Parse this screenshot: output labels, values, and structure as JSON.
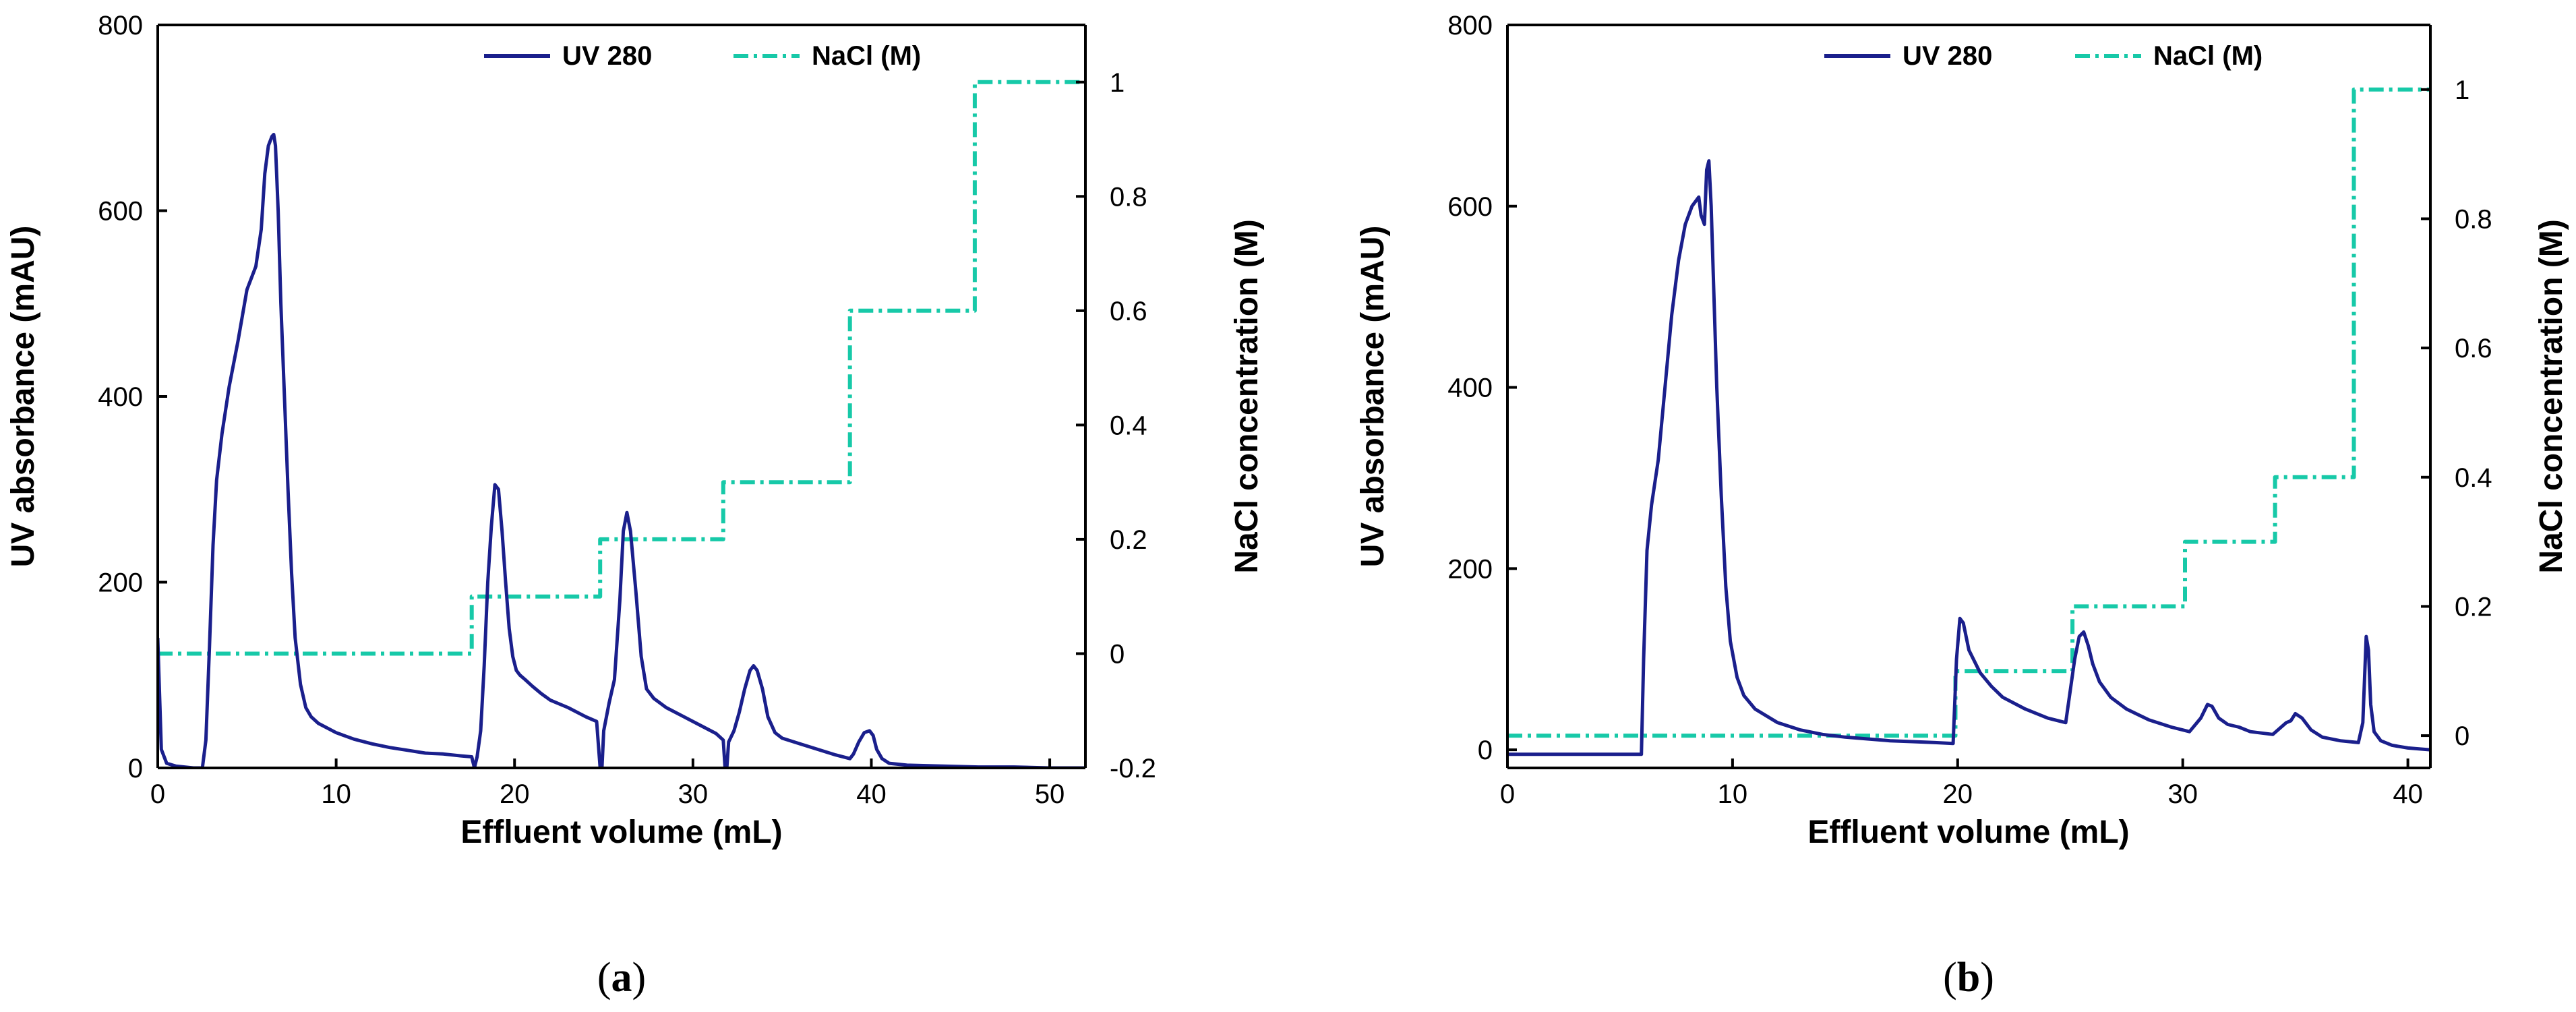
{
  "colors": {
    "uv": "#1a1f8c",
    "nacl": "#17c9a8",
    "axis": "#000000"
  },
  "chart_data": [
    {
      "panel": "(a)",
      "panel_letter": "a",
      "type": "line",
      "xlabel": "Effluent volume (mL)",
      "ylabel": "UV absorbance (mAU)",
      "y2label": "NaCl concentration (M)",
      "xlim": [
        0,
        52
      ],
      "ylim": [
        0,
        800
      ],
      "y2lim": [
        -0.2,
        1.1
      ],
      "xticks": [
        0,
        10,
        20,
        30,
        40,
        50
      ],
      "yticks": [
        0,
        200,
        400,
        600,
        800
      ],
      "y2ticks": [
        -0.2,
        0,
        0.2,
        0.4,
        0.6,
        0.8,
        1
      ],
      "legend": {
        "uv": "UV 280",
        "nacl": "NaCl (M)"
      },
      "series": [
        {
          "name": "UV 280",
          "axis": "left",
          "x": [
            0,
            0.05,
            0.2,
            0.5,
            1.0,
            2.0,
            2.5,
            2.7,
            2.9,
            3.1,
            3.3,
            3.6,
            4.0,
            4.5,
            5.0,
            5.5,
            5.8,
            6.0,
            6.2,
            6.4,
            6.5,
            6.6,
            6.75,
            6.9,
            7.1,
            7.3,
            7.5,
            7.7,
            8.0,
            8.3,
            8.6,
            9,
            10,
            11,
            12,
            13,
            14,
            15,
            16,
            17,
            17.6,
            17.75,
            17.9,
            18.1,
            18.3,
            18.5,
            18.7,
            18.9,
            19.1,
            19.3,
            19.5,
            19.7,
            19.9,
            20.1,
            20.3,
            20.6,
            21,
            21.5,
            22,
            23,
            24,
            24.6,
            24.8,
            24.9,
            25.0,
            25.3,
            25.6,
            25.9,
            26.1,
            26.3,
            26.5,
            26.8,
            27.1,
            27.4,
            27.8,
            28.5,
            29.5,
            30.5,
            31.3,
            31.7,
            31.8,
            31.9,
            32.0,
            32.3,
            32.6,
            32.9,
            33.2,
            33.4,
            33.6,
            33.9,
            34.2,
            34.6,
            35,
            36,
            37,
            38,
            38.8,
            39.0,
            39.3,
            39.6,
            39.9,
            40.1,
            40.3,
            40.6,
            41.0,
            42,
            44,
            46,
            48,
            50,
            52
          ],
          "values": [
            140,
            110,
            20,
            5,
            2,
            0,
            0,
            30,
            130,
            240,
            310,
            360,
            410,
            460,
            515,
            540,
            580,
            640,
            670,
            680,
            682,
            670,
            600,
            500,
            400,
            300,
            210,
            140,
            90,
            65,
            55,
            48,
            38,
            31,
            26,
            22,
            19,
            16,
            15,
            13,
            12,
            0,
            12,
            40,
            110,
            200,
            260,
            305,
            300,
            255,
            200,
            150,
            120,
            105,
            100,
            95,
            88,
            80,
            73,
            65,
            55,
            50,
            0,
            0,
            40,
            70,
            95,
            180,
            255,
            275,
            255,
            190,
            120,
            85,
            75,
            65,
            55,
            45,
            37,
            30,
            0,
            0,
            28,
            40,
            60,
            85,
            105,
            110,
            105,
            85,
            55,
            38,
            32,
            26,
            20,
            14,
            10,
            15,
            28,
            38,
            40,
            35,
            20,
            10,
            5,
            3,
            2,
            1,
            1,
            0,
            0
          ]
        },
        {
          "name": "NaCl (M)",
          "axis": "right",
          "x": [
            0,
            17.6,
            17.6,
            24.8,
            24.8,
            31.7,
            31.7,
            38.8,
            38.8,
            45.8,
            45.8,
            52
          ],
          "values": [
            0,
            0,
            0.1,
            0.1,
            0.2,
            0.2,
            0.3,
            0.3,
            0.6,
            0.6,
            1.0,
            1.0
          ]
        }
      ]
    },
    {
      "panel": "(b)",
      "panel_letter": "b",
      "type": "line",
      "xlabel": "Effluent volume (mL)",
      "ylabel": "UV absorbance (mAU)",
      "y2label": "NaCl concentration (M)",
      "xlim": [
        0,
        41
      ],
      "ylim": [
        -20,
        800
      ],
      "y2lim": [
        -0.05,
        1.1
      ],
      "xticks": [
        0,
        10,
        20,
        30,
        40
      ],
      "yticks": [
        0,
        200,
        400,
        600,
        800
      ],
      "y2ticks": [
        0,
        0.2,
        0.4,
        0.6,
        0.8,
        1
      ],
      "legend": {
        "uv": "UV 280",
        "nacl": "NaCl (M)"
      },
      "series": [
        {
          "name": "UV 280",
          "axis": "left",
          "x": [
            0,
            5.95,
            6.05,
            6.2,
            6.4,
            6.7,
            7.0,
            7.3,
            7.6,
            7.9,
            8.2,
            8.5,
            8.6,
            8.75,
            8.85,
            8.95,
            9.05,
            9.15,
            9.3,
            9.5,
            9.7,
            9.9,
            10.2,
            10.5,
            11,
            12,
            13,
            14,
            15,
            16,
            17,
            18,
            19,
            19.8,
            19.95,
            20.1,
            20.25,
            20.5,
            21,
            21.5,
            22,
            23,
            24,
            24.8,
            25.2,
            25.4,
            25.6,
            25.8,
            26.0,
            26.3,
            26.8,
            27.5,
            28.5,
            29.5,
            30.3,
            30.8,
            31.1,
            31.3,
            31.6,
            32,
            32.5,
            33,
            34,
            34.6,
            34.8,
            35.0,
            35.3,
            35.7,
            36.2,
            37,
            37.8,
            38.0,
            38.15,
            38.25,
            38.35,
            38.5,
            38.8,
            39.3,
            40,
            41
          ],
          "values": [
            -5,
            -5,
            100,
            220,
            270,
            320,
            400,
            480,
            540,
            580,
            600,
            610,
            590,
            580,
            640,
            650,
            600,
            520,
            400,
            280,
            180,
            120,
            80,
            60,
            45,
            30,
            22,
            17,
            14,
            12,
            10,
            9,
            8,
            7,
            100,
            145,
            140,
            110,
            85,
            70,
            58,
            45,
            35,
            30,
            100,
            125,
            130,
            115,
            95,
            75,
            58,
            45,
            33,
            25,
            20,
            35,
            50,
            48,
            35,
            28,
            25,
            20,
            17,
            30,
            32,
            40,
            35,
            22,
            14,
            10,
            8,
            30,
            125,
            110,
            50,
            20,
            10,
            5,
            2,
            0
          ]
        },
        {
          "name": "NaCl (M)",
          "axis": "right",
          "x": [
            0,
            19.9,
            19.9,
            25.1,
            25.1,
            30.1,
            30.1,
            34.1,
            34.1,
            37.6,
            37.6,
            41
          ],
          "values": [
            0,
            0,
            0.1,
            0.1,
            0.2,
            0.2,
            0.3,
            0.3,
            0.4,
            0.4,
            1.0,
            1.0
          ]
        }
      ]
    }
  ]
}
